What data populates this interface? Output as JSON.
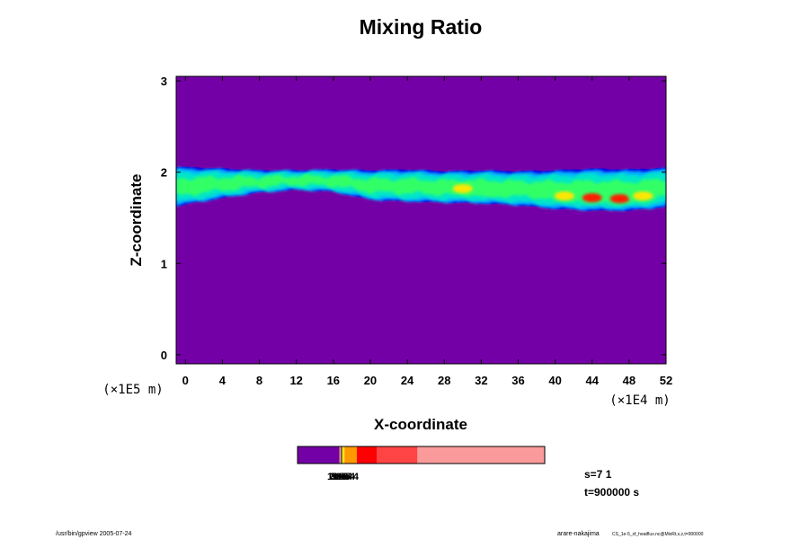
{
  "chart_data": {
    "type": "heatmap",
    "title": "Mixing Ratio",
    "xlabel": "X-coordinate",
    "ylabel": "Z-coordinate",
    "x_multiplier": "(×1E4 m)",
    "y_multiplier": "(×1E5 m)",
    "x_ticks": [
      "0",
      "4",
      "8",
      "12",
      "16",
      "20",
      "24",
      "28",
      "32",
      "36",
      "40",
      "44",
      "48",
      "52"
    ],
    "y_ticks": [
      "0",
      "1",
      "2",
      "3"
    ],
    "xlim": [
      -1,
      52
    ],
    "ylim": [
      -0.1,
      3.05
    ],
    "background_color": "#7300a6",
    "layer": {
      "description_levels": [
        "#0a00e6",
        "#00b4ff",
        "#00e6c8",
        "#33ff66",
        "#ffe600",
        "#ff1a00"
      ],
      "x": [
        -1,
        4,
        8,
        12,
        16,
        20,
        24,
        28,
        32,
        36,
        40,
        44,
        48,
        52
      ],
      "top": [
        2.06,
        2.04,
        2.02,
        2.02,
        2.03,
        2.02,
        2.03,
        2.01,
        2.02,
        2.01,
        2.02,
        2.04,
        2.03,
        2.05
      ],
      "bottom": [
        1.63,
        1.72,
        1.78,
        1.81,
        1.79,
        1.7,
        1.68,
        1.67,
        1.66,
        1.64,
        1.6,
        1.58,
        1.58,
        1.62
      ],
      "hotspots": [
        {
          "x": 30,
          "z": 1.82,
          "level": 4
        },
        {
          "x": 33,
          "z": 1.8,
          "level": 3
        },
        {
          "x": 41,
          "z": 1.74,
          "level": 4
        },
        {
          "x": 44,
          "z": 1.72,
          "level": 5
        },
        {
          "x": 47,
          "z": 1.71,
          "level": 5
        },
        {
          "x": 49.5,
          "z": 1.74,
          "level": 4
        }
      ]
    },
    "colorbar": {
      "segments": [
        {
          "color": "#7300a6",
          "width": 0.17
        },
        {
          "color": "#ffb300",
          "width": 0.006
        },
        {
          "color": "#0a00e6",
          "width": 0.004
        },
        {
          "color": "#ffe600",
          "width": 0.01
        },
        {
          "color": "#ff9900",
          "width": 0.05
        },
        {
          "color": "#ff0000",
          "width": 0.08
        },
        {
          "color": "#ff4444",
          "width": 0.165
        },
        {
          "color": "#fa9a9a",
          "width": 0.515
        }
      ],
      "labels": [
        "1e-5",
        "2e-5",
        "5e-5",
        "1e-4",
        "2e-4",
        "5e-4"
      ]
    }
  },
  "info": {
    "s_label": "s=7 1",
    "t_label": "t=900000 s"
  },
  "footer": {
    "left": "/usr/bin/gpview 2005-07-24",
    "right_main": "arare-nakajima",
    "right_small": "CS_1e-5_xf_heatflux.nc@MixRt,x,z,t=900000"
  }
}
